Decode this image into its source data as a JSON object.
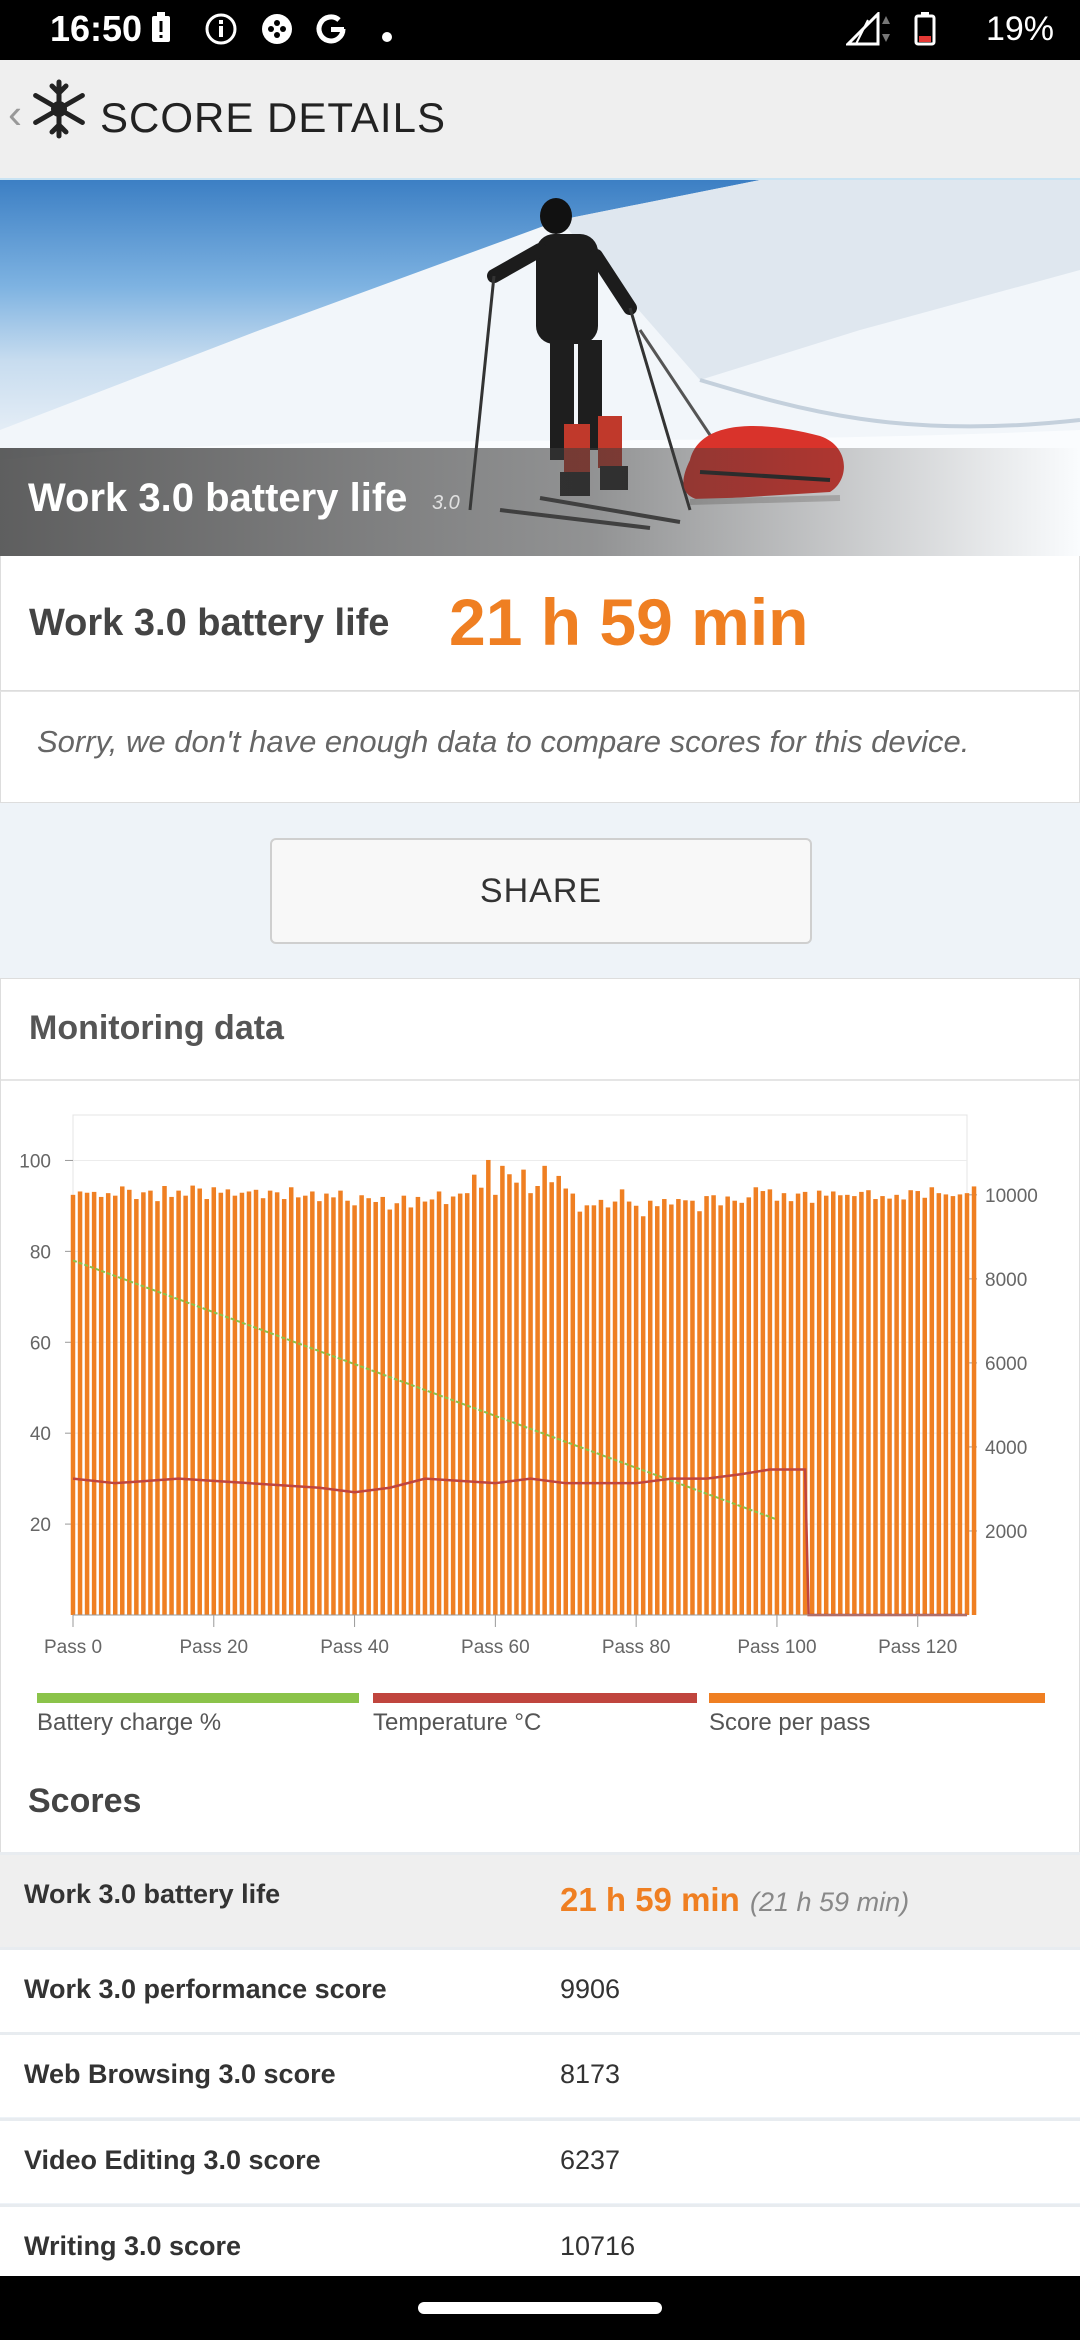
{
  "status_bar": {
    "time": "16:50",
    "battery_text": "19%",
    "left_icons": [
      "battery-alert-icon",
      "info-icon",
      "game-controller-icon",
      "google-icon",
      "dot-icon"
    ],
    "right_icons": [
      "signal-icon",
      "battery-icon"
    ]
  },
  "app_bar": {
    "title": "SCORE DETAILS"
  },
  "hero": {
    "title": "Work 3.0 battery life",
    "version": "3.0"
  },
  "result": {
    "label": "Work 3.0 battery life",
    "value": "21 h 59 min"
  },
  "compare": {
    "message": "Sorry, we don't have enough data to compare scores for this device."
  },
  "share": {
    "label": "SHARE"
  },
  "monitoring": {
    "title": "Monitoring data"
  },
  "chart_data": {
    "type": "bar",
    "x_ticks": [
      "Pass 0",
      "Pass 20",
      "Pass 40",
      "Pass 60",
      "Pass 80",
      "Pass 100",
      "Pass 120"
    ],
    "x_range": [
      0,
      127
    ],
    "y_left_ticks": [
      "100",
      "80",
      "60",
      "40",
      "20"
    ],
    "y_left_range": [
      0,
      110
    ],
    "y_right_ticks": [
      "10000",
      "8000",
      "6000",
      "4000",
      "2000"
    ],
    "y_right_range": [
      0,
      11900
    ],
    "grid": true,
    "legend_position": "bottom",
    "series": [
      {
        "name": "Battery charge %",
        "color": "#8bc34a",
        "type": "line",
        "axis": "left",
        "x": [
          0,
          100
        ],
        "values": [
          78,
          21
        ]
      },
      {
        "name": "Temperature °C",
        "color": "#c0453e",
        "type": "line",
        "axis": "left",
        "x": [
          0,
          6,
          15,
          25,
          35,
          40,
          45,
          50,
          60,
          65,
          70,
          80,
          85,
          90,
          95,
          99,
          104,
          104.5,
          127
        ],
        "values": [
          30,
          29,
          30,
          29,
          28,
          27,
          28,
          30,
          29,
          30,
          29,
          29,
          30,
          30,
          31,
          32,
          32,
          0,
          0
        ]
      },
      {
        "name": "Score per pass",
        "color": "#ef7f22",
        "type": "bar",
        "axis": "right",
        "values": [
          10000,
          10080,
          10050,
          10070,
          9950,
          10040,
          9980,
          10200,
          10120,
          9900,
          10060,
          10100,
          9850,
          10210,
          9950,
          10100,
          9980,
          10220,
          10150,
          9900,
          10180,
          10050,
          10130,
          9980,
          10050,
          10080,
          10120,
          9920,
          10100,
          10060,
          9900,
          10180,
          9940,
          9980,
          10080,
          9850,
          10030,
          9940,
          10100,
          9860,
          9750,
          9990,
          9920,
          9830,
          9950,
          9650,
          9800,
          9980,
          9700,
          9950,
          9840,
          9890,
          10080,
          9780,
          9960,
          10030,
          10040,
          10480,
          10170,
          10830,
          10000,
          10690,
          10490,
          10290,
          10600,
          10040,
          10210,
          10690,
          10300,
          10450,
          10150,
          10030,
          9600,
          9750,
          9750,
          9880,
          9700,
          9840,
          10130,
          9840,
          9740,
          9490,
          9860,
          9730,
          9900,
          9770,
          9900,
          9870,
          9860,
          9610,
          9970,
          9990,
          9750,
          9960,
          9860,
          9810,
          9940,
          10180,
          10090,
          10130,
          9860,
          10040,
          9850,
          10030,
          10070,
          9810,
          10100,
          9980,
          10080,
          9990,
          10000,
          9970,
          10070,
          10110,
          9900,
          9970,
          9910,
          10000,
          9890,
          10110,
          10090,
          9930,
          10180,
          10040,
          10010,
          9970,
          10010,
          10040,
          10200
        ]
      }
    ]
  },
  "legend": {
    "battery": "Battery charge %",
    "temperature": "Temperature °C",
    "score": "Score per pass"
  },
  "scores": {
    "title": "Scores",
    "battery_life": {
      "label": "Work 3.0 battery life",
      "value": "21 h 59 min",
      "sub": "(21 h 59 min)"
    },
    "rows": [
      {
        "label": "Work 3.0 performance score",
        "value": "9906"
      },
      {
        "label": "Web Browsing 3.0 score",
        "value": "8173"
      },
      {
        "label": "Video Editing 3.0 score",
        "value": "6237"
      },
      {
        "label": "Writing 3.0 score",
        "value": "10716"
      }
    ]
  }
}
